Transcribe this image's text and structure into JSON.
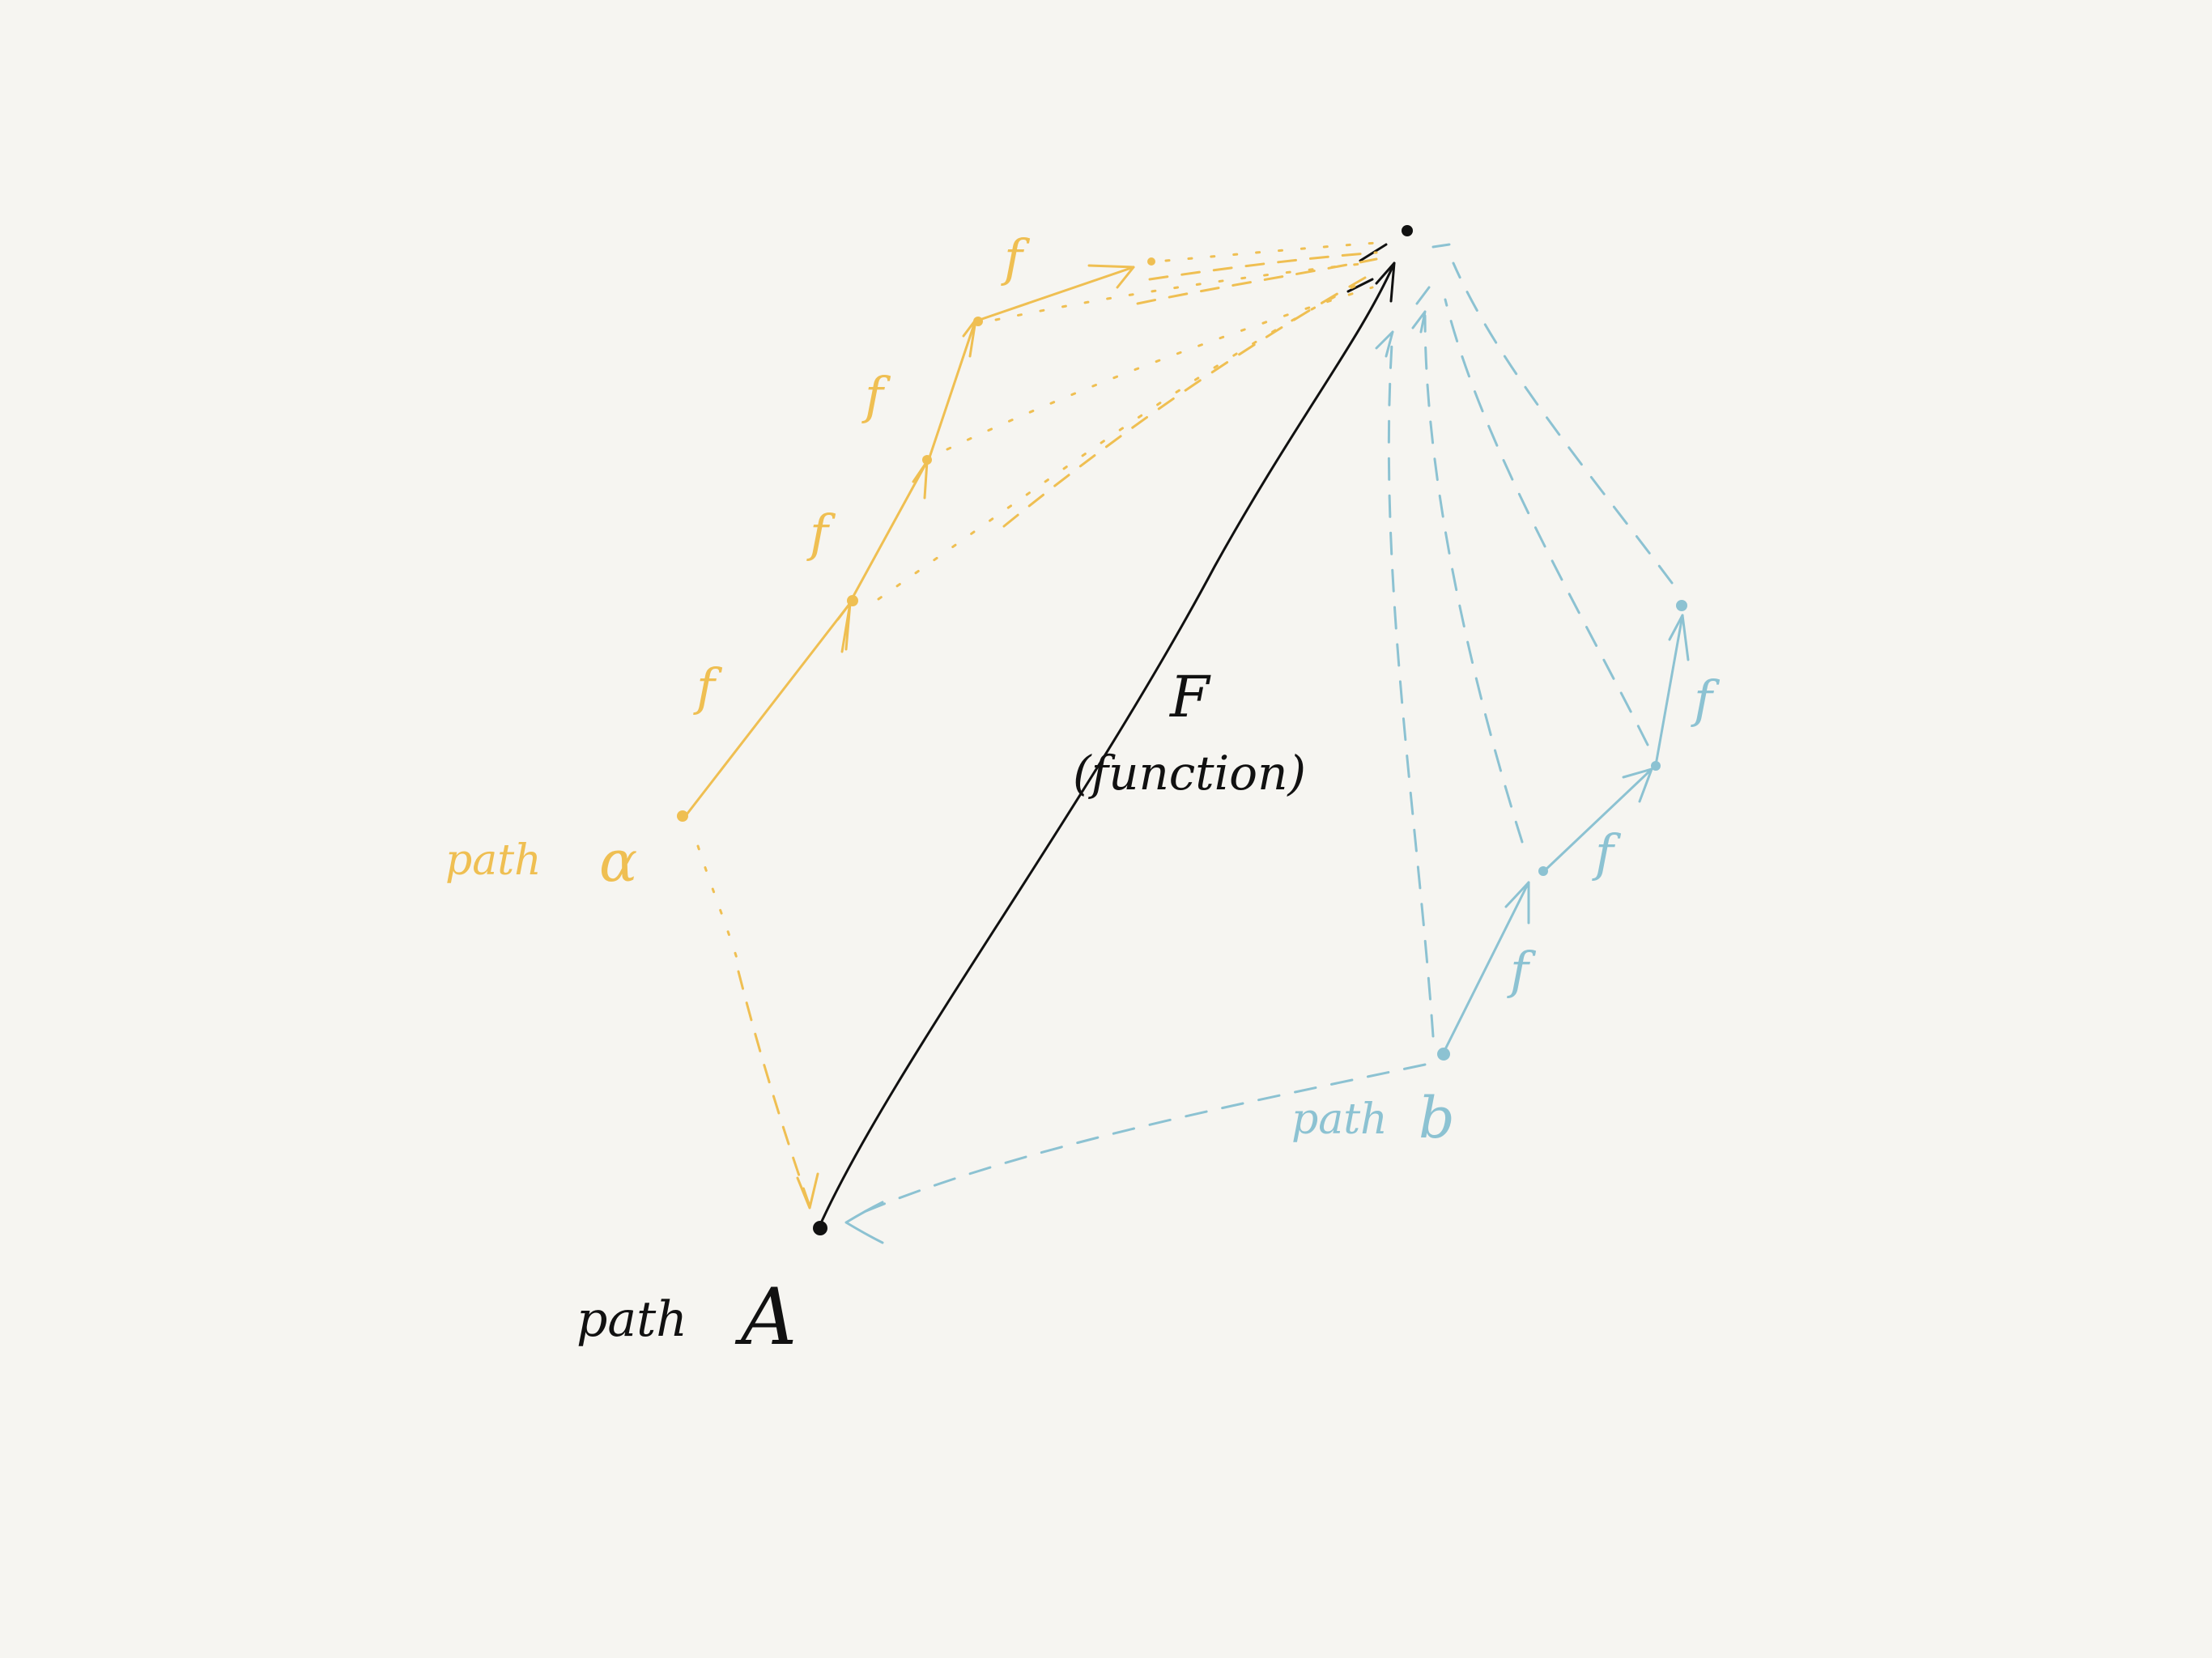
{
  "labels": {
    "path_a_orange": "path",
    "path_a_orange_symbol": "α",
    "path_b": "path",
    "path_b_symbol": "b",
    "path_A": "path",
    "path_A_symbol": "A",
    "F_symbol": "F",
    "F_desc": "(function)",
    "f": "f"
  },
  "colors": {
    "background": "#f6f5f1",
    "orange": "#efbf52",
    "blue": "#8cc2d2",
    "black": "#111111"
  }
}
